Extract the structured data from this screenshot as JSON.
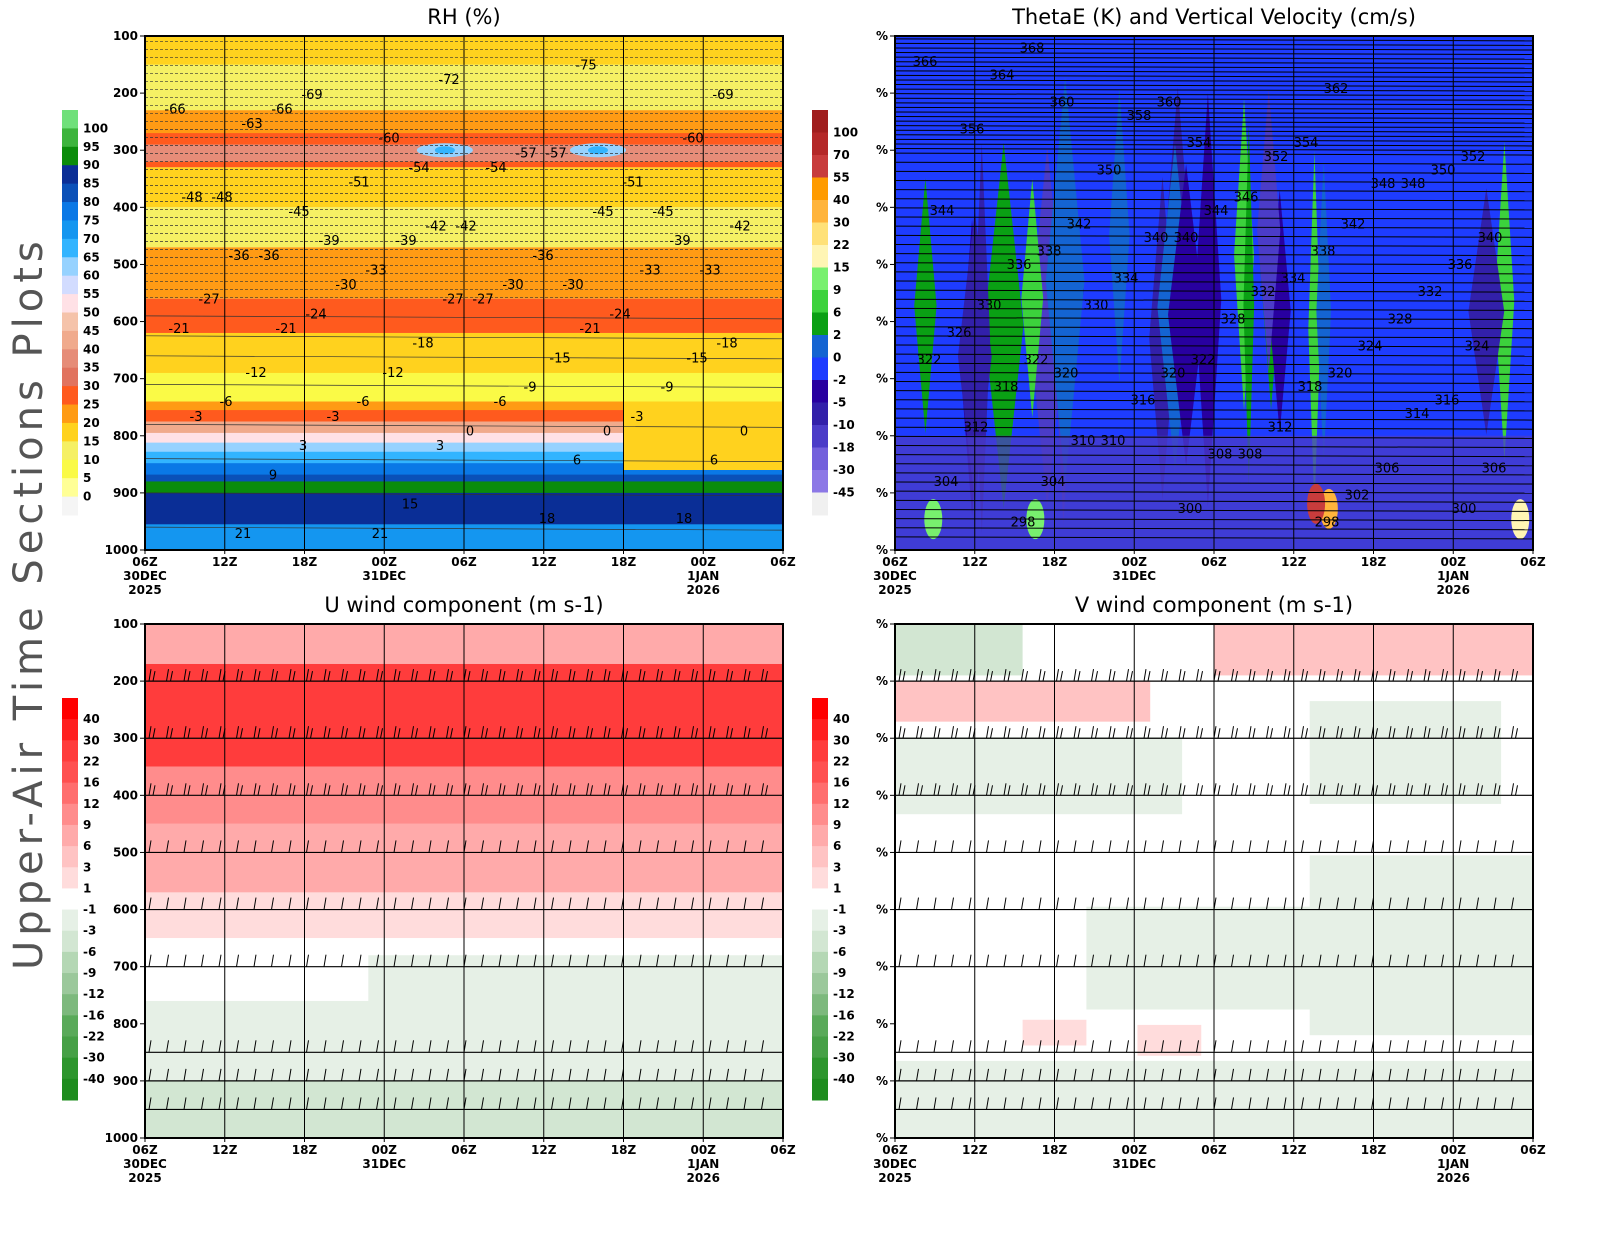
{
  "page_title": "Upper-Air Time Sections Plots",
  "time_axis": {
    "ticks": [
      "06Z",
      "12Z",
      "18Z",
      "00Z",
      "06Z",
      "12Z",
      "18Z",
      "00Z",
      "06Z"
    ],
    "date_labels": [
      {
        "tick_index": 0,
        "line1": "30DEC",
        "line2": "2025"
      },
      {
        "tick_index": 3,
        "line1": "31DEC",
        "line2": ""
      },
      {
        "tick_index": 7,
        "line1": "1JAN",
        "line2": "2026"
      }
    ]
  },
  "chart_data": [
    {
      "id": "rh",
      "type": "heatmap",
      "title": "RH (%)",
      "xlabel": "",
      "ylabel": "",
      "y_ticks": [
        "100",
        "200",
        "300",
        "400",
        "500",
        "600",
        "700",
        "800",
        "900",
        "1000"
      ],
      "ylim": [
        1000,
        100
      ],
      "colorbar": {
        "labels": [
          "100",
          "95",
          "90",
          "85",
          "80",
          "75",
          "70",
          "65",
          "60",
          "55",
          "50",
          "45",
          "40",
          "35",
          "30",
          "25",
          "20",
          "15",
          "10",
          "5",
          "0"
        ],
        "colors": [
          "#6fe07a",
          "#3cb43c",
          "#0a8c0a",
          "#0a2e96",
          "#0a50b8",
          "#0a78e6",
          "#1496f0",
          "#32b4ff",
          "#96d2ff",
          "#d2dcff",
          "#ffe1e6",
          "#f5c3aa",
          "#f0aa8c",
          "#e68c78",
          "#e1735f",
          "#ff5a1e",
          "#ff9b14",
          "#ffd21e",
          "#f5f064",
          "#fafa46",
          "#ffff96",
          "#f5f5f5"
        ]
      },
      "contour_labels": [
        "-66",
        "-69",
        "-72",
        "-75",
        "-69",
        "-66",
        "-54",
        "-57",
        "-60",
        "-63",
        "-60",
        "-57",
        "-45",
        "-48",
        "-51",
        "-54",
        "-51",
        "-48",
        "-39",
        "-42",
        "-45",
        "-42",
        "-45",
        "-42",
        "-30",
        "-33",
        "-36",
        "-39",
        "-36",
        "-39",
        "-36",
        "-33",
        "-30",
        "-33",
        "-27",
        "-30",
        "-27",
        "-24",
        "-21",
        "-24",
        "-27",
        "-21",
        "-18",
        "-21",
        "-18",
        "-15",
        "-15",
        "-12",
        "-12",
        "-9",
        "-9",
        "-6",
        "-6",
        "-6",
        "-3",
        "-3",
        "-3",
        "0",
        "0",
        "0",
        "3",
        "3",
        "6",
        "6",
        "9",
        "15",
        "18",
        "18",
        "21",
        "21"
      ]
    },
    {
      "id": "thetae",
      "type": "heatmap",
      "title": "ThetaE (K) and Vertical Velocity (cm/s)",
      "y_tick_label": "%",
      "ylim": [
        1000,
        100
      ],
      "colorbar": {
        "labels": [
          "100",
          "70",
          "55",
          "40",
          "30",
          "22",
          "15",
          "9",
          "6",
          "2",
          "0",
          "-2",
          "-5",
          "-10",
          "-18",
          "-30",
          "-45"
        ],
        "colors": [
          "#a01e1e",
          "#b42828",
          "#c83c3c",
          "#ff9b00",
          "#ffb43c",
          "#ffe178",
          "#fff5b4",
          "#78f06e",
          "#3cd23c",
          "#0aa014",
          "#1464d2",
          "#1e3cff",
          "#2800a0",
          "#3220aa",
          "#4b3cc8",
          "#7360dc",
          "#8c78e6",
          "#f0f0f0"
        ]
      },
      "contour_labels": [
        "366",
        "360",
        "354",
        "362",
        "352",
        "368",
        "360",
        "354",
        "350",
        "364",
        "358",
        "352",
        "348",
        "356",
        "350",
        "346",
        "348",
        "344",
        "342",
        "344",
        "342",
        "340",
        "338",
        "340",
        "338",
        "336",
        "336",
        "340",
        "334",
        "332",
        "330",
        "334",
        "332",
        "328",
        "326",
        "330",
        "328",
        "324",
        "322",
        "320",
        "322",
        "320",
        "324",
        "322",
        "320",
        "318",
        "316",
        "318",
        "316",
        "312",
        "314",
        "312",
        "310",
        "308",
        "306",
        "304",
        "310",
        "308",
        "302",
        "306",
        "304",
        "300",
        "298",
        "300",
        "298"
      ]
    },
    {
      "id": "uwind",
      "type": "heatmap",
      "title": "U wind component (m s-1)",
      "y_ticks": [
        "100",
        "200",
        "300",
        "400",
        "500",
        "600",
        "700",
        "800",
        "900",
        "1000"
      ],
      "ylim": [
        1000,
        100
      ],
      "colorbar": {
        "labels": [
          "40",
          "30",
          "22",
          "16",
          "12",
          "9",
          "6",
          "3",
          "1",
          "-1",
          "-3",
          "-6",
          "-9",
          "-12",
          "-16",
          "-22",
          "-30",
          "-40"
        ],
        "colors": [
          "#ff0000",
          "#ff2020",
          "#ff3c3c",
          "#ff5050",
          "#ff6e6e",
          "#ff8c8c",
          "#ffaaaa",
          "#ffc3c3",
          "#ffdcdc",
          "#ffffff",
          "#e6f0e6",
          "#d2e6d2",
          "#b4d7b4",
          "#9bc89b",
          "#7db97d",
          "#5aaa5a",
          "#46a046",
          "#2d962d",
          "#1e8c1e"
        ]
      },
      "barb_levels": [
        "100",
        "200",
        "300",
        "400",
        "500",
        "600",
        "700",
        "850",
        "900",
        "950",
        "1000"
      ]
    },
    {
      "id": "vwind",
      "type": "heatmap",
      "title": "V wind component (m s-1)",
      "y_tick_label": "%",
      "ylim": [
        1000,
        100
      ],
      "colorbar": {
        "labels": [
          "40",
          "30",
          "22",
          "16",
          "12",
          "9",
          "6",
          "3",
          "1",
          "-1",
          "-3",
          "-6",
          "-9",
          "-12",
          "-16",
          "-22",
          "-30",
          "-40"
        ],
        "colors": [
          "#ff0000",
          "#ff2020",
          "#ff3c3c",
          "#ff5050",
          "#ff6e6e",
          "#ff8c8c",
          "#ffaaaa",
          "#ffc3c3",
          "#ffdcdc",
          "#ffffff",
          "#e6f0e6",
          "#d2e6d2",
          "#b4d7b4",
          "#9bc89b",
          "#7db97d",
          "#5aaa5a",
          "#46a046",
          "#2d962d",
          "#1e8c1e"
        ]
      },
      "barb_levels": [
        "100",
        "200",
        "300",
        "400",
        "500",
        "600",
        "700",
        "850",
        "900",
        "950",
        "1000"
      ]
    }
  ]
}
